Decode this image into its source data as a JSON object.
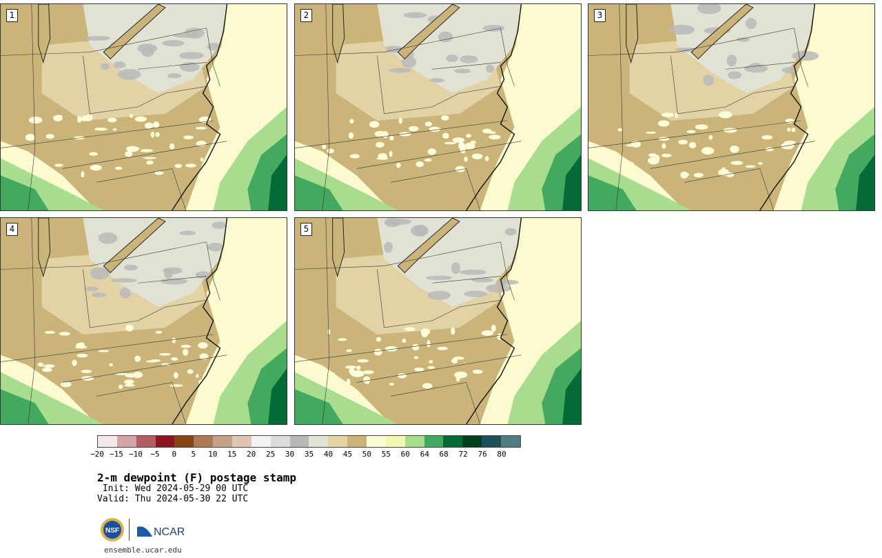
{
  "panels": [
    {
      "label": "1"
    },
    {
      "label": "2"
    },
    {
      "label": "3"
    },
    {
      "label": "4"
    },
    {
      "label": "5"
    }
  ],
  "colorbar": {
    "ticks": [
      "−20",
      "−15",
      "−10",
      "−5",
      "0",
      "5",
      "10",
      "15",
      "20",
      "25",
      "30",
      "35",
      "40",
      "45",
      "50",
      "55",
      "60",
      "64",
      "68",
      "72",
      "76",
      "80"
    ],
    "colors": [
      "#f3e8e8",
      "#d4a3a7",
      "#b25e61",
      "#8c1520",
      "#8a4514",
      "#ad7855",
      "#c8a08a",
      "#e0c4b4",
      "#f2f2f2",
      "#dcdcdc",
      "#b9b9b9",
      "#e2e2d4",
      "#e2d3a6",
      "#cbb47a",
      "#fdfcd9",
      "#f5f7b0",
      "#a8dc8e",
      "#43a95f",
      "#036b35",
      "#01401f",
      "#1a5056",
      "#4f7d80"
    ]
  },
  "title": "2-m dewpoint (F) postage stamp",
  "init": " Init: Wed 2024-05-29 00 UTC",
  "valid": "Valid: Thu 2024-05-30 22 UTC",
  "logos": {
    "nsf": "NSF",
    "ncar": "NCAR"
  },
  "website": "ensemble.ucar.edu"
}
